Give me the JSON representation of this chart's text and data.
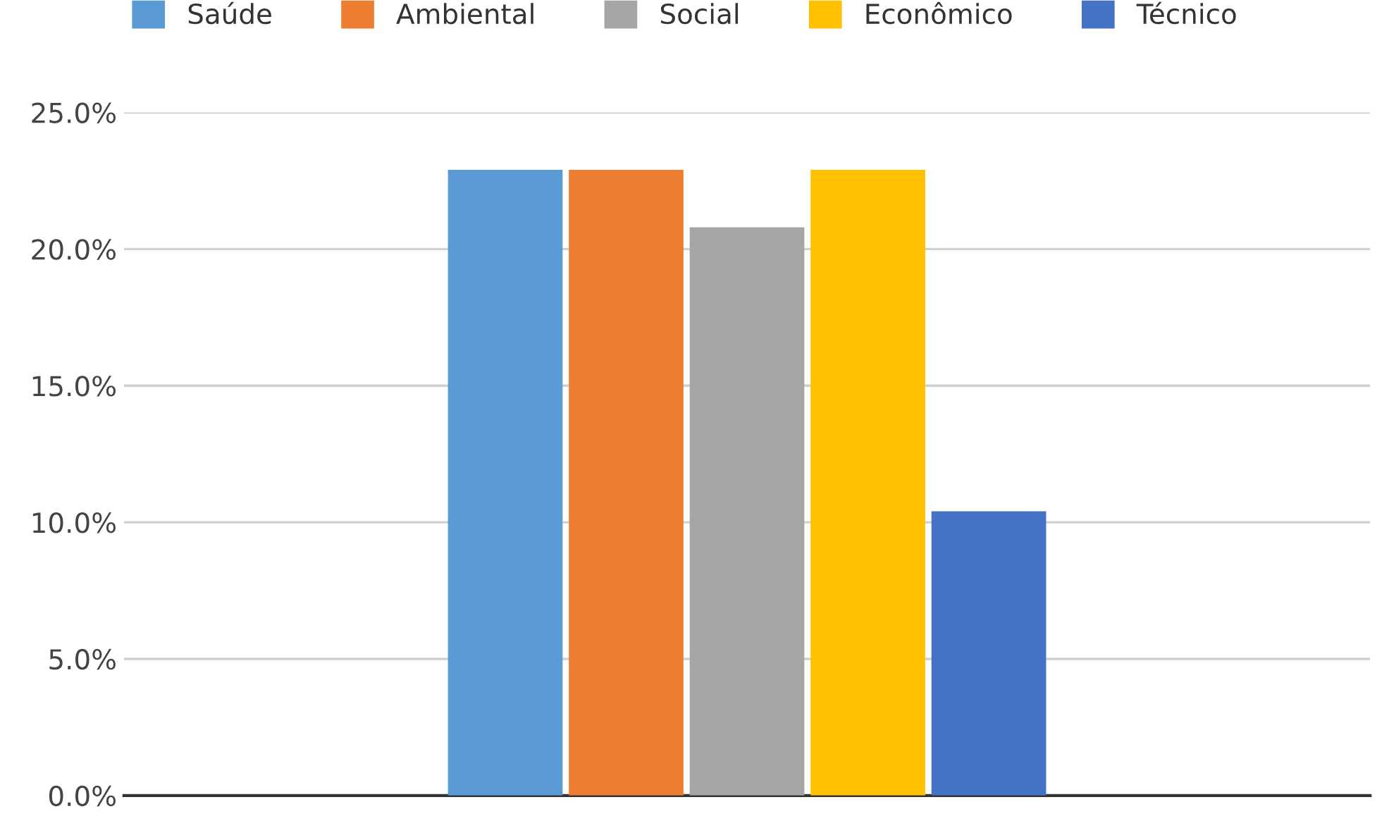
{
  "chart_data": {
    "type": "bar",
    "categories": [
      null
    ],
    "series": [
      {
        "name": "Saúde",
        "color": "#5b9bd5",
        "values": [
          22.9
        ]
      },
      {
        "name": "Ambiental",
        "color": "#ed7d31",
        "values": [
          22.9
        ]
      },
      {
        "name": "Social",
        "color": "#a5a5a5",
        "values": [
          20.8
        ]
      },
      {
        "name": "Econômico",
        "color": "#ffc000",
        "values": [
          22.9
        ]
      },
      {
        "name": "Técnico",
        "color": "#4472c4",
        "values": [
          10.4
        ]
      }
    ],
    "ylim": [
      0,
      25
    ],
    "yticks": [
      {
        "value": 0,
        "label": "0.0%"
      },
      {
        "value": 5,
        "label": "5.0%"
      },
      {
        "value": 10,
        "label": "10.0%"
      },
      {
        "value": 15,
        "label": "15.0%"
      },
      {
        "value": 20,
        "label": "20.0%"
      },
      {
        "value": 25,
        "label": "25.0%"
      }
    ],
    "grid": "y",
    "legend": "top"
  }
}
